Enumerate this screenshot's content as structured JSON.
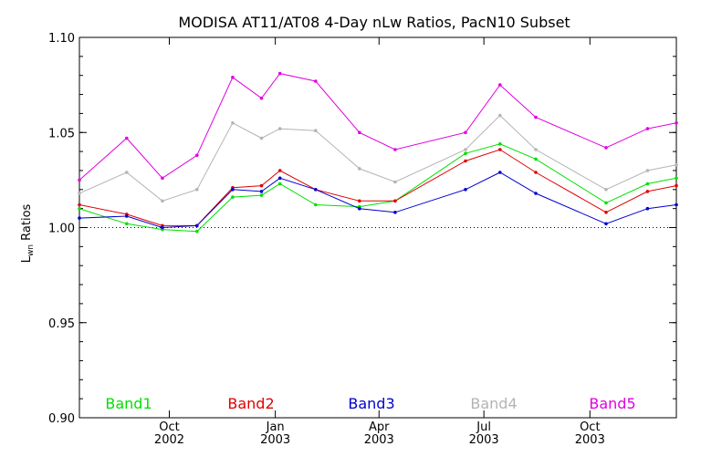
{
  "chart_data": {
    "type": "line",
    "title": "MODISA AT11/AT08 4-Day nLw Ratios, PacN10 Subset",
    "ylabel_main": "L",
    "ylabel_sub": "wn",
    "ylabel_rest": " Ratios",
    "xlabel": "",
    "ylim": [
      0.9,
      1.1
    ],
    "xlim": [
      "2002-07-15",
      "2003-12-15"
    ],
    "reference_line": 1.0,
    "y_ticks": [
      0.9,
      0.95,
      1.0,
      1.05,
      1.1
    ],
    "y_tick_labels": [
      "0.90",
      "0.95",
      "1.00",
      "1.05",
      "1.10"
    ],
    "x_ticks": [
      {
        "date": "2002-10-01",
        "month": "Oct",
        "year": "2002"
      },
      {
        "date": "2003-01-01",
        "month": "Jan",
        "year": "2003"
      },
      {
        "date": "2003-04-01",
        "month": "Apr",
        "year": "2003"
      },
      {
        "date": "2003-07-01",
        "month": "Jul",
        "year": "2003"
      },
      {
        "date": "2003-10-01",
        "month": "Oct",
        "year": "2003"
      }
    ],
    "x": [
      "2002-07-15",
      "2002-08-25",
      "2002-09-25",
      "2002-10-25",
      "2002-11-25",
      "2002-12-20",
      "2003-01-05",
      "2003-02-05",
      "2003-03-15",
      "2003-04-15",
      "2003-06-15",
      "2003-07-15",
      "2003-08-15",
      "2003-10-15",
      "2003-11-20",
      "2003-12-15"
    ],
    "series": [
      {
        "name": "Band1",
        "color": "#00e000",
        "values": [
          1.01,
          1.002,
          0.999,
          0.998,
          1.016,
          1.017,
          1.023,
          1.012,
          1.011,
          1.014,
          1.039,
          1.044,
          1.036,
          1.013,
          1.023,
          1.026
        ]
      },
      {
        "name": "Band2",
        "color": "#e00000",
        "values": [
          1.012,
          1.007,
          1.001,
          1.001,
          1.021,
          1.022,
          1.03,
          1.02,
          1.014,
          1.014,
          1.035,
          1.041,
          1.029,
          1.008,
          1.019,
          1.022
        ]
      },
      {
        "name": "Band3",
        "color": "#0000d0",
        "values": [
          1.005,
          1.006,
          1.0,
          1.001,
          1.02,
          1.019,
          1.026,
          1.02,
          1.01,
          1.008,
          1.02,
          1.029,
          1.018,
          1.002,
          1.01,
          1.012
        ]
      },
      {
        "name": "Band4",
        "color": "#b4b4b4",
        "values": [
          1.018,
          1.029,
          1.014,
          1.02,
          1.055,
          1.047,
          1.052,
          1.051,
          1.031,
          1.024,
          1.041,
          1.059,
          1.041,
          1.02,
          1.03,
          1.033
        ]
      },
      {
        "name": "Band5",
        "color": "#e000e0",
        "values": [
          1.025,
          1.047,
          1.026,
          1.038,
          1.079,
          1.068,
          1.081,
          1.077,
          1.05,
          1.041,
          1.05,
          1.075,
          1.058,
          1.042,
          1.052,
          1.055
        ]
      }
    ],
    "grid": false,
    "legend_placement": "bottom"
  }
}
